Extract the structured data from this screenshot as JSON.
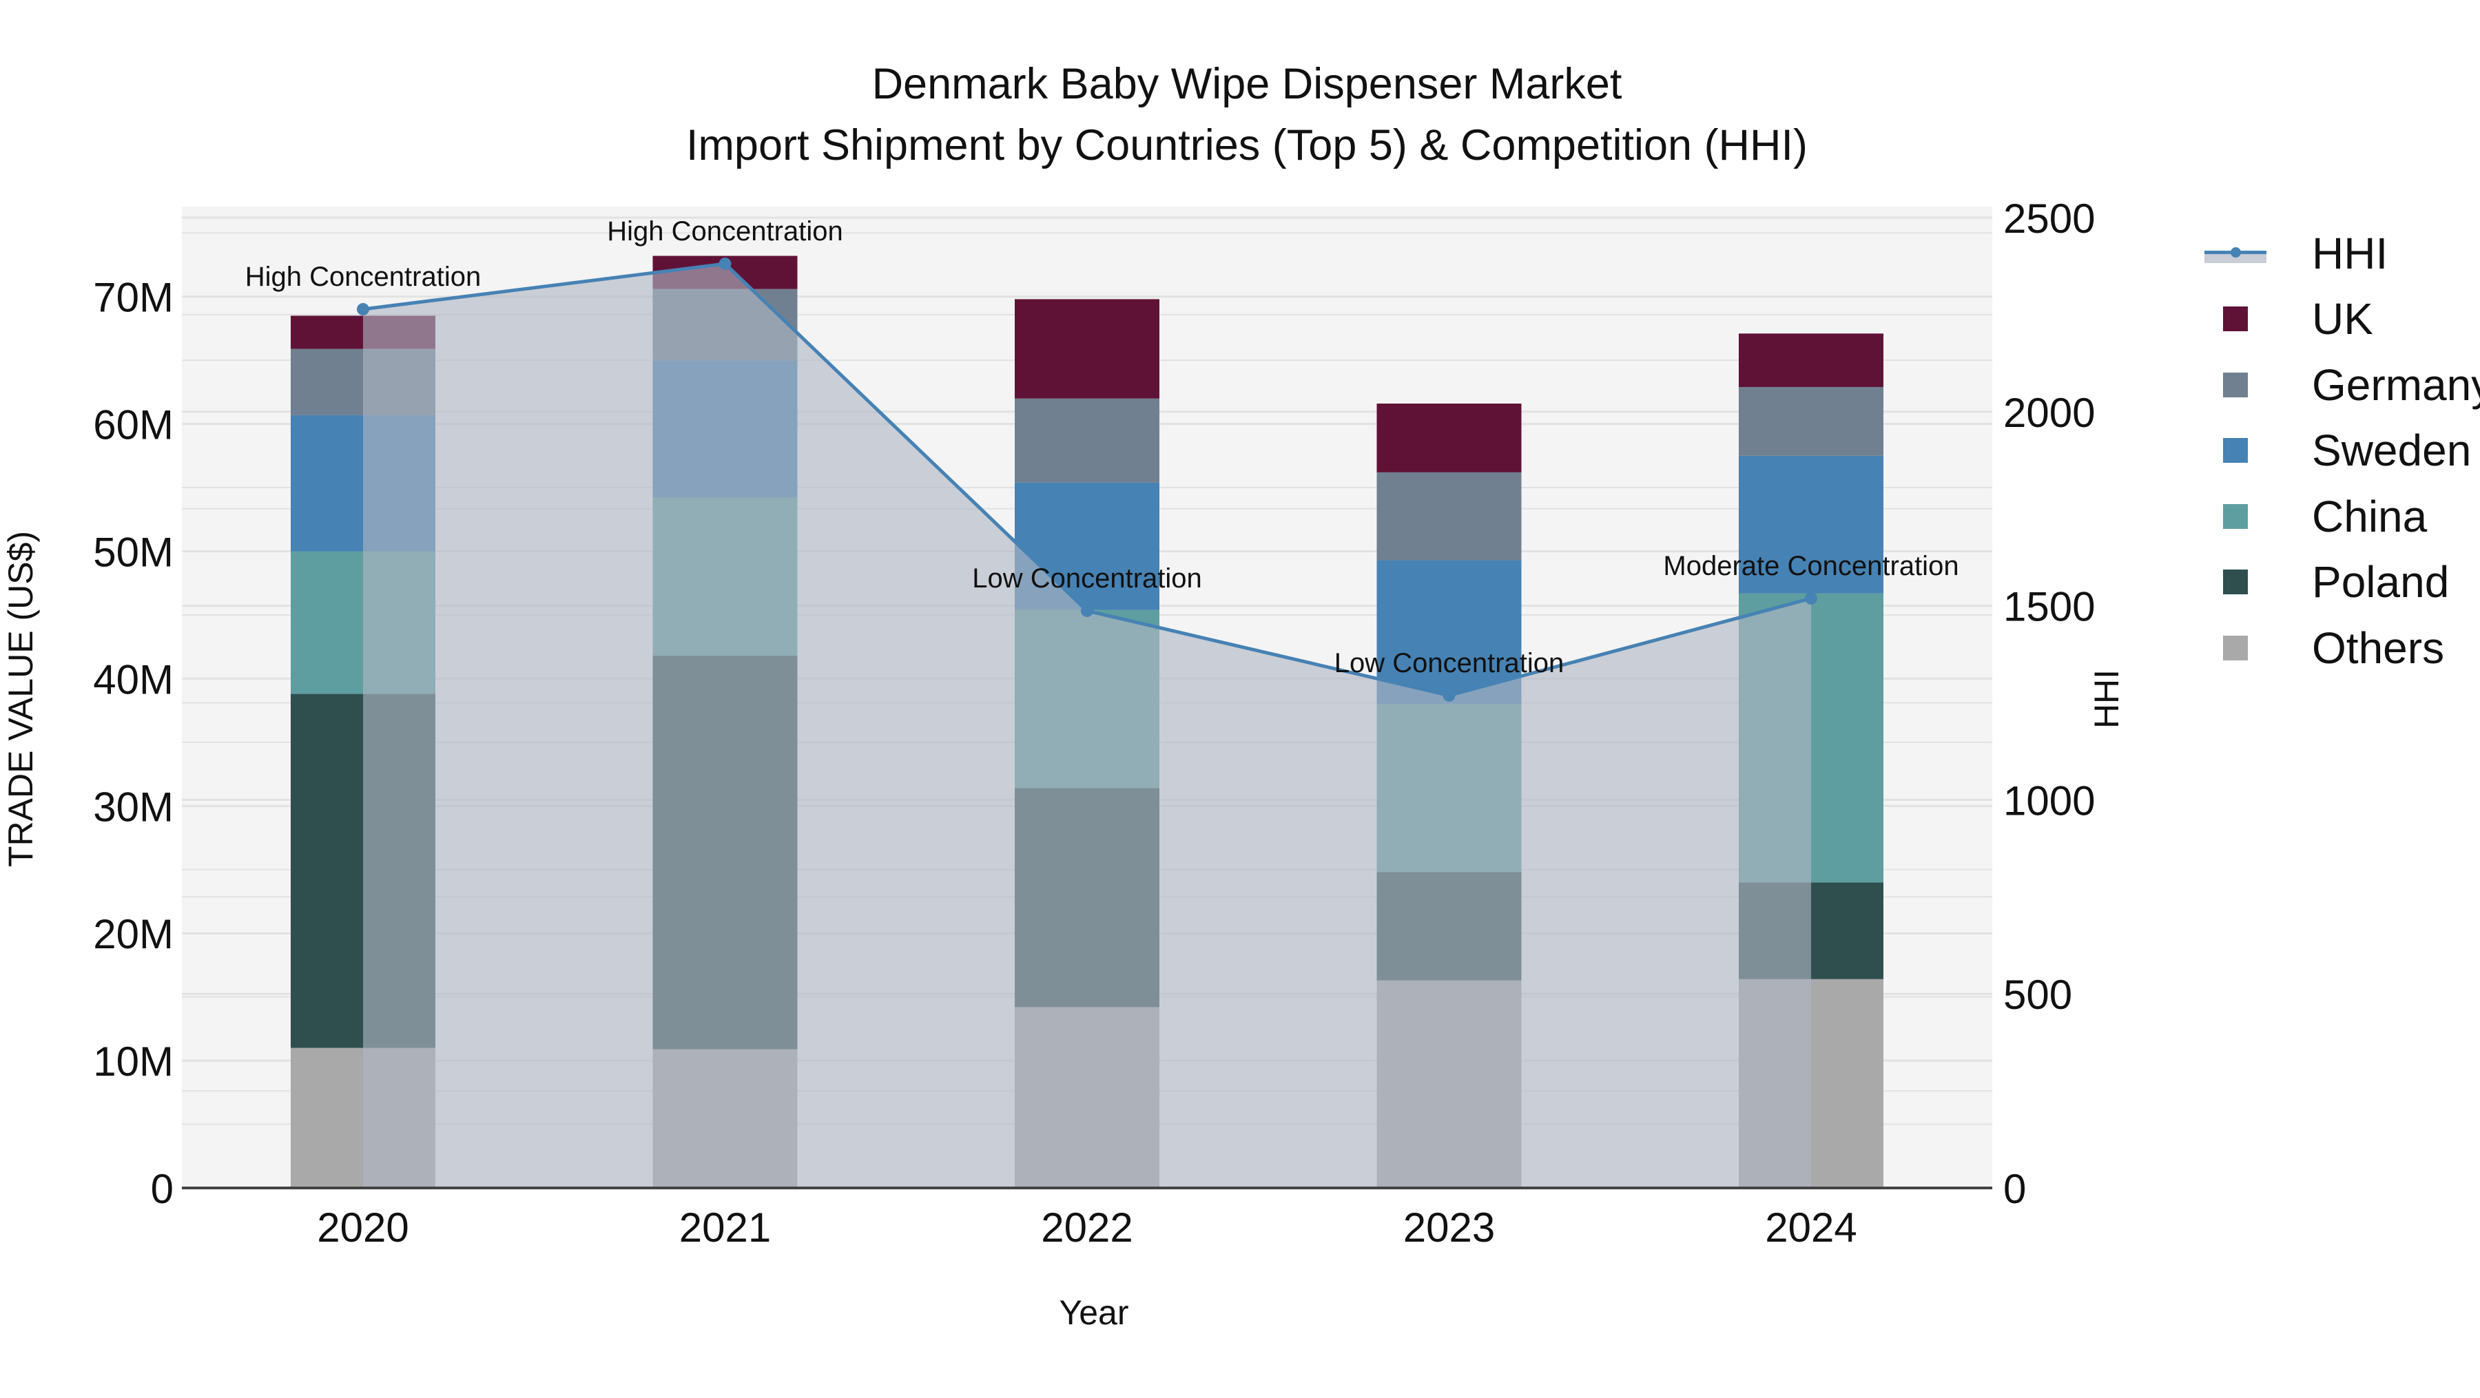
{
  "title": {
    "line1": "Denmark Baby Wipe Dispenser Market",
    "line2": "Import Shipment by Countries (Top 5) & Competition (HHI)"
  },
  "axes": {
    "x_title": "Year",
    "y_left_title": "TRADE VALUE (US$)",
    "y_right_title": "HHI",
    "y_left_ticks": [
      "0",
      "10M",
      "20M",
      "30M",
      "40M",
      "50M",
      "60M",
      "70M"
    ],
    "y_right_ticks": [
      "0",
      "500",
      "1000",
      "1500",
      "2000",
      "2500"
    ],
    "x_ticks": [
      "2020",
      "2021",
      "2022",
      "2023",
      "2024"
    ]
  },
  "legend": {
    "items": [
      {
        "label": "HHI",
        "color": "#4682b4",
        "kind": "line"
      },
      {
        "label": "UK",
        "color": "#601236",
        "kind": "box"
      },
      {
        "label": "Germany",
        "color": "#708090",
        "kind": "box"
      },
      {
        "label": "Sweden",
        "color": "#4682b4",
        "kind": "box"
      },
      {
        "label": "China",
        "color": "#5f9ea0",
        "kind": "box"
      },
      {
        "label": "Poland",
        "color": "#2f4f4f",
        "kind": "box"
      },
      {
        "label": "Others",
        "color": "#a9a9a9",
        "kind": "box"
      }
    ]
  },
  "annotations": [
    {
      "text": "High Concentration",
      "year": "2020"
    },
    {
      "text": "High Concentration",
      "year": "2021"
    },
    {
      "text": "Low Concentration",
      "year": "2022"
    },
    {
      "text": "Low Concentration",
      "year": "2023"
    },
    {
      "text": "Moderate Concentration",
      "year": "2024"
    }
  ],
  "colors": {
    "plot_bg": "#f4f4f4",
    "grid": "#e2e2e2",
    "hhi_fill": "rgba(176,183,196,0.62)",
    "hhi_line": "#4682b4"
  },
  "chart_data": {
    "type": "bar",
    "title": "Denmark Baby Wipe Dispenser Market — Import Shipment by Countries (Top 5) & Competition (HHI)",
    "xlabel": "Year",
    "ylabel": "TRADE VALUE (US$)",
    "y2label": "HHI",
    "categories": [
      "2020",
      "2021",
      "2022",
      "2023",
      "2024"
    ],
    "stacked": true,
    "stack_order_bottom_to_top": [
      "Others",
      "Poland",
      "China",
      "Sweden",
      "Germany",
      "UK"
    ],
    "series": [
      {
        "name": "Others",
        "color": "#a9a9a9",
        "values": [
          11.0,
          10.9,
          14.2,
          16.3,
          16.4
        ]
      },
      {
        "name": "Poland",
        "color": "#2f4f4f",
        "values": [
          27.8,
          30.9,
          17.2,
          8.5,
          7.6
        ]
      },
      {
        "name": "China",
        "color": "#5f9ea0",
        "values": [
          11.2,
          12.4,
          14.0,
          13.2,
          22.7
        ]
      },
      {
        "name": "Sweden",
        "color": "#4682b4",
        "values": [
          10.7,
          10.8,
          10.0,
          11.3,
          10.8
        ]
      },
      {
        "name": "Germany",
        "color": "#708090",
        "values": [
          5.2,
          5.6,
          6.6,
          6.9,
          5.4
        ]
      },
      {
        "name": "UK",
        "color": "#601236",
        "values": [
          2.6,
          2.6,
          7.8,
          5.4,
          4.2
        ]
      }
    ],
    "units": "Million US$",
    "totals": [
      68.5,
      73.2,
      69.8,
      61.6,
      67.1
    ],
    "line_series": {
      "name": "HHI",
      "axis": "right",
      "color": "#4682b4",
      "values": [
        2264,
        2381,
        1487,
        1269,
        1519
      ],
      "labels": [
        "High Concentration",
        "High Concentration",
        "Low Concentration",
        "Low Concentration",
        "Moderate Concentration"
      ],
      "fill": "tozeroy"
    },
    "ylim": [
      0,
      77
    ],
    "y2lim": [
      0,
      2528
    ],
    "grid": true,
    "legend_position": "right"
  }
}
